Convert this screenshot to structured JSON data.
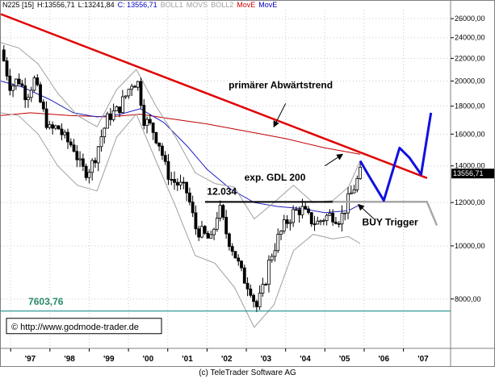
{
  "header": {
    "symbol": "N225 [15]",
    "high": "H:13556,71",
    "low": "L:13241,84",
    "close": "C: 13556,71",
    "boll1": "BOLL1",
    "movs": "MOVS",
    "boll2": "BOLL2",
    "move_red": "MovE",
    "move_blue": "MovE"
  },
  "copyright": "(c) TeleTrader Software AG",
  "colors": {
    "trend_red": "#e00000",
    "ema200": "#c00000",
    "ma_blue": "#2020c0",
    "forecast_blue": "#1010e0",
    "support": "#000000",
    "low_line": "#008080",
    "bands": "#a0a0a0",
    "grid": "#c8c8c8",
    "header_move_red": "#d00000",
    "header_move_blue": "#0000c0",
    "low_label": "#2a8a6a"
  },
  "chart_data": {
    "type": "candlestick",
    "title": "N225 [15]",
    "y_scale": "log",
    "ylim": [
      6500,
      27000
    ],
    "y_ticks": [
      8000,
      10000,
      12000,
      14000,
      16000,
      18000,
      20000,
      22000,
      24000,
      26000
    ],
    "y_tick_labels": [
      "8000,00",
      "10000,00",
      "12000,00",
      "14000,00",
      "16000,00",
      "18000,00",
      "20000,00",
      "22000,00",
      "24000,00",
      "26000,00"
    ],
    "x_ticks": [
      "'97",
      "'98",
      "'99",
      "'00",
      "'01",
      "'02",
      "'03",
      "'04",
      "'05",
      "'06",
      "'07"
    ],
    "x_range": [
      1996.75,
      2008.2
    ],
    "last_value_label": "13556,71",
    "source_label": "© http://www.godmode-trader.de",
    "annotations": {
      "trend": "primärer Abwärtstrend",
      "gdl": "exp. GDL 200",
      "level": "12.034",
      "buy": "BUY Trigger",
      "low": "7603,76"
    },
    "support_level": 12034,
    "low_level": 7603.76,
    "trend_line": [
      [
        1996.75,
        26500
      ],
      [
        2007.6,
        13300
      ]
    ],
    "price_path": [
      [
        1996.75,
        22800
      ],
      [
        1996.85,
        21500
      ],
      [
        1997.0,
        19500
      ],
      [
        1997.2,
        20200
      ],
      [
        1997.4,
        18800
      ],
      [
        1997.6,
        20100
      ],
      [
        1997.8,
        17800
      ],
      [
        1998.0,
        16200
      ],
      [
        1998.2,
        16500
      ],
      [
        1998.4,
        15600
      ],
      [
        1998.6,
        15200
      ],
      [
        1998.8,
        13800
      ],
      [
        1998.95,
        13700
      ],
      [
        1999.1,
        14200
      ],
      [
        1999.3,
        15800
      ],
      [
        1999.5,
        17300
      ],
      [
        1999.7,
        17600
      ],
      [
        1999.9,
        18600
      ],
      [
        2000.1,
        20000
      ],
      [
        2000.25,
        19800
      ],
      [
        2000.4,
        17000
      ],
      [
        2000.6,
        16400
      ],
      [
        2000.8,
        15300
      ],
      [
        2000.95,
        13800
      ],
      [
        2001.1,
        13200
      ],
      [
        2001.3,
        12900
      ],
      [
        2001.5,
        12500
      ],
      [
        2001.7,
        10800
      ],
      [
        2001.9,
        10500
      ],
      [
        2002.1,
        10200
      ],
      [
        2002.3,
        11800
      ],
      [
        2002.5,
        10500
      ],
      [
        2002.7,
        9700
      ],
      [
        2002.9,
        8800
      ],
      [
        2003.1,
        8400
      ],
      [
        2003.25,
        7700
      ],
      [
        2003.45,
        8400
      ],
      [
        2003.6,
        9500
      ],
      [
        2003.8,
        10300
      ],
      [
        2004.0,
        11000
      ],
      [
        2004.2,
        11500
      ],
      [
        2004.4,
        11700
      ],
      [
        2004.6,
        11200
      ],
      [
        2004.8,
        11000
      ],
      [
        2005.0,
        11300
      ],
      [
        2005.2,
        11400
      ],
      [
        2005.4,
        11200
      ],
      [
        2005.55,
        11900
      ],
      [
        2005.7,
        12600
      ],
      [
        2005.85,
        13300
      ],
      [
        2005.9,
        13556.71
      ]
    ],
    "series": [
      {
        "name": "MovE",
        "color": "#c00000",
        "x": [
          1996.75,
          1997.5,
          1998.5,
          1999.5,
          2000.3,
          2001.0,
          2002.0,
          2003.0,
          2004.0,
          2005.0,
          2005.9
        ],
        "values": [
          17300,
          17500,
          17300,
          17200,
          17400,
          17100,
          16700,
          16200,
          15700,
          15100,
          14700
        ]
      },
      {
        "name": "MovE",
        "color": "#2020c0",
        "x": [
          1996.75,
          1997.3,
          1998.0,
          1998.6,
          1999.2,
          1999.8,
          2000.3,
          2000.9,
          2001.5,
          2002.0,
          2002.6,
          2003.2,
          2003.8,
          2004.4,
          2005.0,
          2005.6,
          2005.9
        ],
        "values": [
          20000,
          19500,
          18500,
          17500,
          17200,
          17400,
          17800,
          16800,
          15200,
          13800,
          12700,
          12000,
          11800,
          11700,
          11500,
          11600,
          11900
        ]
      },
      {
        "name": "BOLL1",
        "color": "#a0a0a0",
        "x": [
          1996.75,
          1997.2,
          1997.7,
          1998.2,
          1998.7,
          1999.2,
          1999.7,
          2000.2,
          2000.7,
          2001.2,
          2001.7,
          2002.2,
          2002.7,
          2003.2,
          2003.7,
          2004.2,
          2004.7,
          2005.2,
          2005.6,
          2005.9
        ],
        "values": [
          23500,
          23000,
          21500,
          19000,
          17300,
          16500,
          19300,
          21000,
          18000,
          15800,
          13600,
          13000,
          12800,
          11200,
          12000,
          12900,
          12000,
          12100,
          12800,
          14300
        ]
      },
      {
        "name": "BOLL2",
        "color": "#a0a0a0",
        "x": [
          1996.75,
          1997.2,
          1997.7,
          1998.2,
          1998.7,
          1999.2,
          1999.7,
          2000.2,
          2000.7,
          2001.2,
          2001.7,
          2002.2,
          2002.7,
          2003.2,
          2003.7,
          2004.2,
          2004.7,
          2005.2,
          2005.6,
          2005.9
        ],
        "values": [
          17500,
          17300,
          16000,
          14000,
          12900,
          12600,
          15800,
          17400,
          14300,
          11800,
          9600,
          9300,
          8400,
          7100,
          7800,
          9800,
          10500,
          10300,
          10400,
          10100
        ]
      }
    ],
    "forecast_blue": [
      [
        2005.9,
        14300
      ],
      [
        2006.1,
        13500
      ],
      [
        2006.5,
        12100
      ],
      [
        2006.9,
        15100
      ],
      [
        2007.15,
        14500
      ],
      [
        2007.45,
        13500
      ],
      [
        2007.7,
        17500
      ]
    ],
    "forecast_grey": [
      [
        2005.2,
        12034
      ],
      [
        2007.6,
        12034
      ],
      [
        2007.85,
        10900
      ]
    ]
  }
}
